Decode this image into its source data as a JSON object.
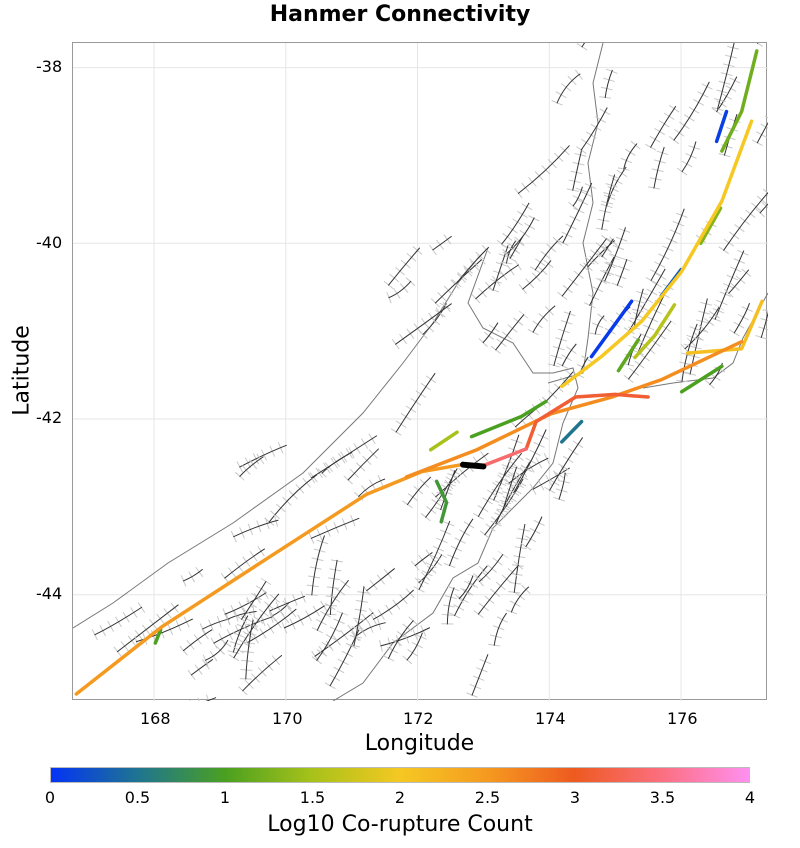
{
  "title": "Hanmer Connectivity",
  "chart_data": {
    "type": "map",
    "title": "Hanmer Connectivity",
    "xlabel": "Longitude",
    "ylabel": "Latitude",
    "xlim": [
      166.77,
      177.32
    ],
    "ylim": [
      -45.21,
      -37.72
    ],
    "xticks": [
      "168",
      "170",
      "172",
      "174",
      "176"
    ],
    "xtick_values": [
      168,
      170,
      172,
      174,
      176
    ],
    "yticks": [
      "-38",
      "-40",
      "-42",
      "-44"
    ],
    "ytick_values": [
      -38,
      -40,
      -42,
      -44
    ],
    "grid": true,
    "colorbar": {
      "label": "Log10 Co-rupture Count",
      "range": [
        0,
        4
      ],
      "ticks": [
        "0",
        "0.5",
        "1",
        "1.5",
        "2",
        "2.5",
        "3",
        "3.5",
        "4"
      ],
      "colors": [
        "#0433f5",
        "#1f7590",
        "#4ba020",
        "#a8c21a",
        "#f5c822",
        "#f59a20",
        "#ee5a20",
        "#fb6f80",
        "#ff90f0"
      ]
    },
    "source_fault": {
      "name": "Hanmer",
      "color": "#000000",
      "points": [
        [
          172.69,
          -42.52
        ],
        [
          173.0,
          -42.54
        ]
      ]
    },
    "ruptures": [
      {
        "value": 2.5,
        "points": [
          [
            166.82,
            -45.13
          ],
          [
            168.11,
            -44.37
          ],
          [
            169.63,
            -43.63
          ],
          [
            171.22,
            -42.86
          ],
          [
            172.06,
            -42.6
          ],
          [
            172.67,
            -42.52
          ]
        ]
      },
      {
        "value": 3.4,
        "points": [
          [
            173.0,
            -42.53
          ],
          [
            173.65,
            -42.34
          ]
        ]
      },
      {
        "value": 3.1,
        "points": [
          [
            173.65,
            -42.34
          ],
          [
            173.8,
            -42.03
          ],
          [
            174.4,
            -41.75
          ],
          [
            175.0,
            -41.72
          ],
          [
            175.5,
            -41.75
          ]
        ]
      },
      {
        "value": 2.6,
        "points": [
          [
            171.83,
            -42.66
          ],
          [
            172.9,
            -42.35
          ],
          [
            174.03,
            -41.94
          ],
          [
            174.95,
            -41.75
          ],
          [
            175.71,
            -41.55
          ],
          [
            176.92,
            -41.12
          ]
        ]
      },
      {
        "value": 2.0,
        "points": [
          [
            174.19,
            -41.63
          ],
          [
            174.79,
            -41.29
          ],
          [
            175.4,
            -40.89
          ],
          [
            176.01,
            -40.32
          ],
          [
            176.62,
            -39.52
          ],
          [
            177.07,
            -38.61
          ]
        ]
      },
      {
        "value": 2.1,
        "points": [
          [
            176.1,
            -41.25
          ],
          [
            176.92,
            -41.2
          ],
          [
            177.23,
            -40.66
          ]
        ]
      },
      {
        "value": 1.0,
        "points": [
          [
            176.01,
            -41.69
          ],
          [
            176.62,
            -41.4
          ]
        ]
      },
      {
        "value": 0.9,
        "points": [
          [
            172.29,
            -42.71
          ],
          [
            172.44,
            -42.95
          ],
          [
            172.36,
            -43.17
          ]
        ]
      },
      {
        "value": 1.2,
        "points": [
          [
            176.62,
            -38.95
          ],
          [
            176.92,
            -38.5
          ],
          [
            177.15,
            -37.81
          ]
        ]
      },
      {
        "value": 0.05,
        "points": [
          [
            174.64,
            -41.29
          ],
          [
            175.25,
            -40.66
          ]
        ]
      },
      {
        "value": 0.1,
        "points": [
          [
            176.54,
            -38.84
          ],
          [
            176.69,
            -38.5
          ]
        ]
      },
      {
        "value": 0.5,
        "points": [
          [
            174.19,
            -42.26
          ],
          [
            174.49,
            -42.03
          ]
        ]
      },
      {
        "value": 1.0,
        "points": [
          [
            172.82,
            -42.2
          ],
          [
            173.58,
            -41.97
          ],
          [
            173.95,
            -41.8
          ]
        ]
      },
      {
        "value": 1.6,
        "points": [
          [
            175.3,
            -41.3
          ],
          [
            175.6,
            -41.05
          ],
          [
            175.9,
            -40.7
          ]
        ]
      },
      {
        "value": 1.1,
        "points": [
          [
            175.05,
            -41.45
          ],
          [
            175.35,
            -41.1
          ]
        ]
      },
      {
        "value": 0.3,
        "points": [
          [
            175.7,
            -40.6
          ],
          [
            176.0,
            -40.3
          ]
        ]
      },
      {
        "value": 1.3,
        "points": [
          [
            176.3,
            -40.0
          ],
          [
            176.6,
            -39.6
          ]
        ]
      },
      {
        "value": 1.0,
        "points": [
          [
            168.1,
            -44.4
          ],
          [
            168.02,
            -44.55
          ]
        ]
      },
      {
        "value": 1.5,
        "points": [
          [
            172.2,
            -42.35
          ],
          [
            172.6,
            -42.15
          ]
        ]
      }
    ]
  }
}
